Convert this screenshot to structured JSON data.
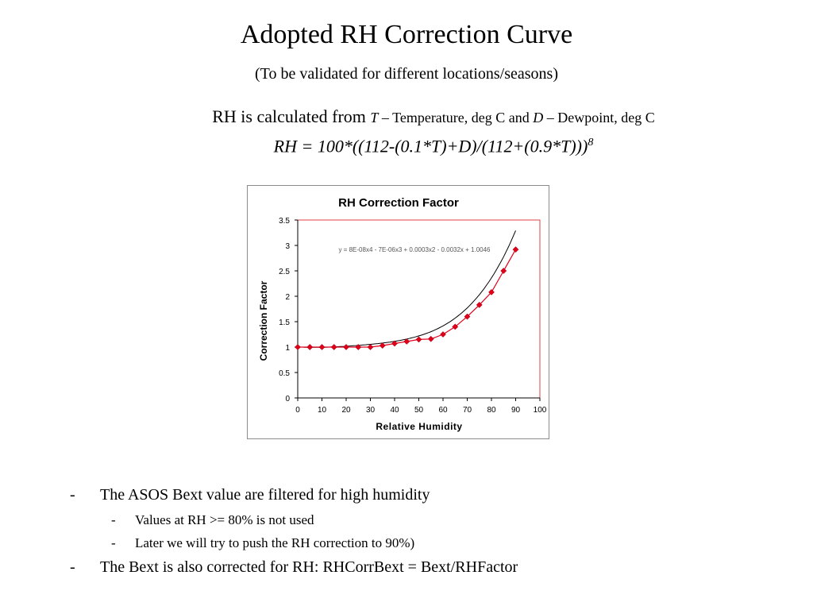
{
  "slide": {
    "title": "Adopted RH Correction Curve",
    "subtitle": "(To be validated for different locations/seasons)",
    "formula_intro": "RH is calculated from",
    "var_t": "T",
    "var_t_desc": " – Temperature, deg C and ",
    "var_d": "D",
    "var_d_desc": " – Dewpoint, deg C",
    "formula": "RH = 100*((112-(0.1*T)+D)/(112+(0.9*T)))",
    "formula_exponent": "8"
  },
  "bullets": [
    {
      "dash": "-",
      "text": "The ASOS Bext value are filtered for high humidity"
    },
    {
      "dash": "-",
      "text": "Values at RH >= 80% is not used"
    },
    {
      "dash": "-",
      "text": "Later we will try to push the RH correction to 90%)"
    },
    {
      "dash": "-",
      "text": "The Bext is also corrected for RH: RHCorrBext = Bext/RHFactor"
    }
  ],
  "chart_data": {
    "type": "scatter",
    "title": "RH Correction Factor",
    "xlabel": "Relative Humidity",
    "ylabel": "Correction Factor",
    "xlim": [
      0,
      100
    ],
    "ylim": [
      0,
      3.5
    ],
    "x_ticks": [
      "0",
      "10",
      "20",
      "30",
      "40",
      "50",
      "60",
      "70",
      "80",
      "90",
      "100"
    ],
    "y_ticks": [
      "0",
      "0.5",
      "1",
      "1.5",
      "2",
      "2.5",
      "3",
      "3.5"
    ],
    "trendline_equation": "y = 8E-08x4 - 7E-06x3 + 0.0003x2 - 0.0032x + 1.0046",
    "trendline_coefficients": [
      8e-08,
      -7e-06,
      0.0003,
      -0.0032,
      1.0046
    ],
    "series": [
      {
        "x": [
          0,
          5,
          10,
          15,
          20,
          25,
          30,
          35,
          40,
          45,
          50,
          55,
          60,
          65,
          70,
          75,
          80,
          85,
          90
        ],
        "y": [
          1.0,
          1.0,
          1.0,
          1.0,
          1.0,
          1.0,
          1.0,
          1.03,
          1.07,
          1.11,
          1.15,
          1.16,
          1.25,
          1.4,
          1.6,
          1.83,
          2.08,
          2.5,
          2.92
        ]
      }
    ],
    "colors": {
      "marker": "#e0001a",
      "line": "#e0001a",
      "trendline": "#000000",
      "plot_border": "#e04040",
      "axis": "#000000"
    },
    "grid": false,
    "legend": "none"
  }
}
